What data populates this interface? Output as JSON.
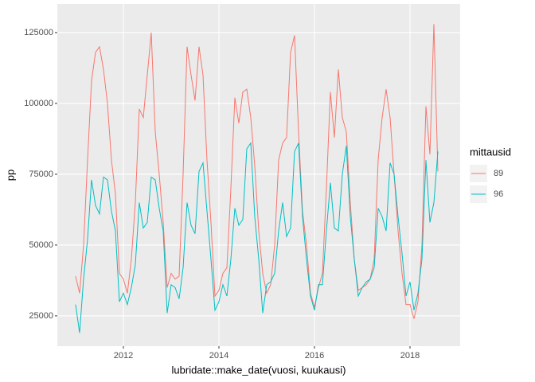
{
  "chart_data": {
    "type": "line",
    "x_label": "lubridate::make_date(vuosi, kuukausi)",
    "y_label": "pp",
    "legend_title": "mittausid",
    "x": [
      2011,
      2011.0833,
      2011.1667,
      2011.25,
      2011.3333,
      2011.4167,
      2011.5,
      2011.5833,
      2011.6667,
      2011.75,
      2011.8333,
      2011.9167,
      2012,
      2012.0833,
      2012.1667,
      2012.25,
      2012.3333,
      2012.4167,
      2012.5,
      2012.5833,
      2012.6667,
      2012.75,
      2012.8333,
      2012.9167,
      2013,
      2013.0833,
      2013.1667,
      2013.25,
      2013.3333,
      2013.4167,
      2013.5,
      2013.5833,
      2013.6667,
      2013.75,
      2013.8333,
      2013.9167,
      2014,
      2014.0833,
      2014.1667,
      2014.25,
      2014.3333,
      2014.4167,
      2014.5,
      2014.5833,
      2014.6667,
      2014.75,
      2014.8333,
      2014.9167,
      2015,
      2015.0833,
      2015.1667,
      2015.25,
      2015.3333,
      2015.4167,
      2015.5,
      2015.5833,
      2015.6667,
      2015.75,
      2015.8333,
      2015.9167,
      2016,
      2016.0833,
      2016.1667,
      2016.25,
      2016.3333,
      2016.4167,
      2016.5,
      2016.5833,
      2016.6667,
      2016.75,
      2016.8333,
      2016.9167,
      2017,
      2017.0833,
      2017.1667,
      2017.25,
      2017.3333,
      2017.4167,
      2017.5,
      2017.5833,
      2017.6667,
      2017.75,
      2017.8333,
      2017.9167,
      2018,
      2018.0833,
      2018.1667,
      2018.25,
      2018.3333,
      2018.4167,
      2018.5,
      2018.5833
    ],
    "series": [
      {
        "name": "89",
        "color": "#F8766D",
        "values": [
          39000,
          33000,
          50000,
          80000,
          108000,
          118000,
          120000,
          112000,
          100000,
          80000,
          68000,
          40000,
          38000,
          33000,
          45000,
          65000,
          98000,
          95000,
          110000,
          125000,
          90000,
          75000,
          58000,
          35000,
          40000,
          38000,
          39000,
          75000,
          120000,
          110000,
          101000,
          120000,
          110000,
          80000,
          58000,
          32000,
          34000,
          40000,
          42000,
          70000,
          102000,
          93000,
          104000,
          105000,
          95000,
          78000,
          55000,
          40000,
          33000,
          36000,
          50000,
          80000,
          86000,
          88000,
          118000,
          124000,
          90000,
          62000,
          50000,
          33000,
          28000,
          35000,
          40000,
          70000,
          104000,
          88000,
          112000,
          95000,
          90000,
          65000,
          45000,
          34000,
          35000,
          36000,
          38000,
          45000,
          80000,
          95000,
          105000,
          95000,
          75000,
          55000,
          40000,
          29000,
          29000,
          24000,
          30000,
          50000,
          99000,
          82000,
          128000,
          76000
        ]
      },
      {
        "name": "96",
        "color": "#00BFC4",
        "values": [
          29000,
          19000,
          38000,
          52000,
          73000,
          64000,
          61000,
          74000,
          73000,
          62000,
          55000,
          30000,
          33000,
          29000,
          35000,
          43000,
          65000,
          56000,
          58000,
          74000,
          73000,
          63000,
          55000,
          26000,
          36000,
          35000,
          31000,
          42000,
          65000,
          57000,
          54000,
          76000,
          79000,
          62000,
          45000,
          27000,
          30000,
          36000,
          32000,
          45000,
          63000,
          57000,
          59000,
          84000,
          86000,
          60000,
          45000,
          26000,
          36000,
          37000,
          40000,
          55000,
          65000,
          53000,
          56000,
          83000,
          86000,
          60000,
          45000,
          32000,
          27000,
          36000,
          36000,
          55000,
          72000,
          56000,
          55000,
          75000,
          85000,
          60000,
          45000,
          32000,
          35000,
          37000,
          38000,
          42000,
          63000,
          60000,
          55000,
          79000,
          75000,
          60000,
          47000,
          32000,
          37000,
          27000,
          33000,
          45000,
          80000,
          58000,
          65000,
          83000
        ]
      }
    ],
    "xlim": [
      2010.617,
      2019.05
    ],
    "xticks": [
      2012,
      2014,
      2016,
      2018
    ],
    "ylim": [
      14300,
      135100
    ],
    "yticks": [
      25000,
      50000,
      75000,
      100000,
      125000
    ],
    "grid": true,
    "legend": "right"
  }
}
